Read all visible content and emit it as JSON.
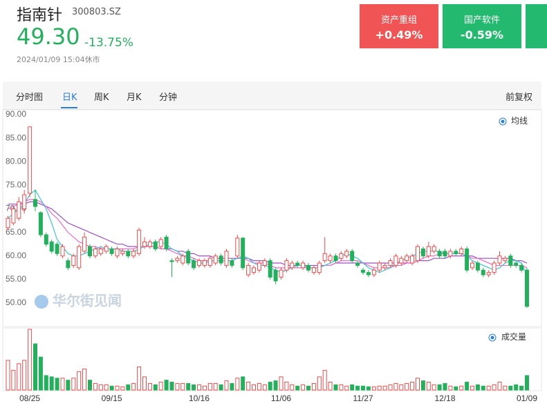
{
  "header": {
    "name": "指南针",
    "code": "300803.SZ",
    "price": "49.30",
    "change": "-13.75%",
    "time": "2024/01/09 15:04休市"
  },
  "cards": [
    {
      "label": "资产重组",
      "change": "+0.49%",
      "color": "#f05454"
    },
    {
      "label": "国产软件",
      "change": "-0.59%",
      "color": "#23b96f"
    }
  ],
  "tabs": [
    "分时图",
    "日K",
    "周K",
    "月K",
    "分钟"
  ],
  "active_tab": 1,
  "right_tab": "前复权",
  "watermark": "华尔街见闻",
  "chart_data": {
    "type": "candlestick",
    "categories": [
      null,
      null,
      null,
      null,
      "08/25",
      null,
      null,
      null,
      null,
      null,
      null,
      null,
      null,
      null,
      null,
      null,
      null,
      null,
      null,
      "09/15",
      null,
      null,
      null,
      null,
      null,
      null,
      null,
      null,
      null,
      null,
      null,
      null,
      null,
      null,
      null,
      "10/16",
      null,
      null,
      null,
      null,
      null,
      null,
      null,
      null,
      null,
      null,
      null,
      null,
      null,
      null,
      "11/06",
      null,
      null,
      null,
      null,
      null,
      null,
      null,
      null,
      null,
      null,
      null,
      null,
      null,
      null,
      "11/27",
      null,
      null,
      null,
      null,
      null,
      null,
      null,
      null,
      null,
      null,
      null,
      null,
      null,
      null,
      "12/18",
      null,
      null,
      null,
      null,
      null,
      null,
      null,
      null,
      null,
      null,
      null,
      null,
      null,
      null,
      "01/09"
    ],
    "open": [
      66,
      67,
      68,
      70,
      73.3,
      72,
      69.2,
      64.5,
      63,
      62.5,
      60,
      59,
      58,
      57.5,
      61,
      62,
      60,
      60.5,
      61,
      61.5,
      60,
      60.5,
      61,
      60,
      60.5,
      62,
      62,
      63,
      62,
      64,
      59,
      59,
      58.5,
      61,
      59,
      58,
      58,
      58,
      58.5,
      60,
      58,
      59,
      60,
      63.8,
      56,
      56.5,
      57,
      58,
      59,
      57,
      55.5,
      57,
      57.5,
      58.5,
      57.5,
      58,
      56.5,
      56.5,
      59,
      59,
      60,
      59.5,
      60,
      61,
      58.5,
      57,
      56.5,
      56,
      57,
      57.5,
      58,
      58,
      58.5,
      59,
      58.5,
      59,
      61.5,
      60,
      61,
      61,
      61,
      60,
      61,
      60.5,
      61.5,
      57.5,
      58.5,
      57,
      56,
      56.5,
      58.5,
      59,
      60,
      58.5,
      58,
      57
    ],
    "high": [
      68.5,
      70.5,
      72.5,
      74,
      87.5,
      74,
      69.5,
      65,
      63.5,
      63,
      62.5,
      59.5,
      60.5,
      62.5,
      65,
      62.5,
      62,
      62,
      62.5,
      62,
      62,
      61.5,
      61.5,
      61.5,
      66,
      64,
      63.5,
      63.5,
      64,
      64.5,
      59.5,
      60,
      60.5,
      61.5,
      59.5,
      59.5,
      59.5,
      60,
      60.5,
      60.5,
      61.5,
      59.5,
      64.5,
      64,
      58.5,
      58,
      59,
      59.5,
      59.5,
      57.5,
      57.5,
      59.5,
      59,
      59,
      59,
      58.5,
      58,
      59,
      64,
      60.5,
      60.5,
      61,
      61.5,
      61.5,
      59,
      57.5,
      57,
      57.5,
      59,
      58.5,
      59.5,
      60.5,
      60,
      60.5,
      60.5,
      62.5,
      62,
      63,
      62.5,
      61.5,
      61.5,
      61.5,
      61.5,
      62,
      62,
      59,
      59,
      57.5,
      57,
      59,
      61,
      60,
      60.5,
      59,
      58.5,
      57.5
    ],
    "low": [
      65.5,
      66.5,
      67.5,
      69,
      72.5,
      69.5,
      64,
      62,
      60.5,
      60,
      59.5,
      57,
      57.5,
      57,
      60.5,
      59.5,
      59.5,
      60,
      60.5,
      60,
      59.5,
      60,
      59.5,
      59.5,
      60,
      61.5,
      61.5,
      61,
      61.5,
      61,
      55.5,
      58.5,
      58,
      58,
      57,
      57.5,
      57.5,
      57.5,
      58,
      58,
      57.5,
      57.5,
      59.5,
      57,
      55.5,
      56,
      56.5,
      57.5,
      55,
      54,
      55,
      56.5,
      57,
      57.5,
      57,
      56.5,
      56,
      56,
      58.5,
      58.5,
      58.5,
      59,
      59.5,
      58.5,
      57.5,
      56,
      55.5,
      55.5,
      56.5,
      57,
      57.5,
      57.5,
      58,
      58.5,
      58,
      58.5,
      59.5,
      59.5,
      60.5,
      59.5,
      59.5,
      59.5,
      60,
      60,
      56.5,
      57,
      56.5,
      55.5,
      55.5,
      56,
      58,
      58.5,
      57.5,
      57.5,
      56.5,
      49
    ],
    "close": [
      68,
      70,
      71.5,
      73,
      87.4,
      70.5,
      64.5,
      62.5,
      61,
      60.5,
      62,
      57.5,
      60,
      62,
      64,
      60,
      61.5,
      61.5,
      62,
      60.5,
      61.5,
      61,
      60,
      61,
      65.5,
      63,
      63,
      61.5,
      63.5,
      61.5,
      58.8,
      59.5,
      60,
      58.5,
      57.5,
      59,
      59,
      59.5,
      60,
      58.5,
      61,
      58,
      63.8,
      57.5,
      58,
      57.5,
      58.5,
      59,
      55.5,
      54.7,
      57,
      59,
      58.5,
      58,
      58.5,
      57,
      57.5,
      58.5,
      60.5,
      60,
      59,
      60.5,
      61,
      59,
      58,
      56.5,
      56,
      57,
      58.5,
      58,
      59,
      60,
      59.5,
      60,
      60,
      62,
      60,
      62,
      62,
      60,
      60,
      61,
      60.5,
      61.5,
      57,
      58.5,
      57,
      56,
      56.5,
      58.5,
      60,
      59.5,
      58,
      58,
      57,
      49.3
    ],
    "volume": [
      45,
      30,
      40,
      45,
      92,
      70,
      50,
      22,
      20,
      18,
      18,
      15,
      18,
      28,
      32,
      15,
      10,
      8,
      8,
      6,
      6,
      5,
      8,
      10,
      35,
      20,
      10,
      8,
      12,
      15,
      12,
      10,
      10,
      10,
      8,
      8,
      6,
      10,
      10,
      8,
      14,
      10,
      18,
      20,
      12,
      8,
      10,
      8,
      12,
      14,
      20,
      12,
      8,
      6,
      8,
      6,
      10,
      20,
      30,
      12,
      8,
      8,
      6,
      8,
      6,
      6,
      5,
      5,
      6,
      6,
      8,
      10,
      8,
      10,
      12,
      18,
      14,
      12,
      8,
      8,
      10,
      6,
      5,
      6,
      12,
      6,
      8,
      6,
      6,
      8,
      12,
      6,
      6,
      8,
      6,
      22
    ],
    "ma": [
      {
        "color": "#9b4fc4",
        "values": [
          71,
          71,
          71,
          71,
          71.5,
          71.5,
          71,
          70.5,
          70,
          69,
          68,
          67,
          66.5,
          66,
          65.5,
          65,
          64.5,
          64,
          63.5,
          63,
          62.5,
          62.5,
          62,
          62,
          62,
          62,
          62,
          62,
          61.5,
          61.5,
          61.5,
          61,
          61,
          60.5,
          60.5,
          60,
          60,
          60,
          59.5,
          59.5,
          59.5,
          59.5,
          59.5,
          59.5,
          59.5,
          59,
          59,
          59,
          58.5,
          58.5,
          58.5,
          58,
          58,
          58,
          58,
          58,
          58,
          58,
          58,
          58,
          58.5,
          58.5,
          58.5,
          58.5,
          58.5,
          58.5,
          58.5,
          58.5,
          58.5,
          58.5,
          58.5,
          58.5,
          58.5,
          58.5,
          58.5,
          59,
          59,
          59,
          59.5,
          59.5,
          59.5,
          60,
          60,
          60,
          60,
          60,
          59.5,
          59.5,
          59.5,
          59.5,
          59.5,
          59.5,
          59.5,
          59,
          59,
          58.5
        ]
      },
      {
        "color": "#f06ac8",
        "values": [
          70,
          70.5,
          71,
          71.5,
          72,
          72,
          71.5,
          70.5,
          69,
          68,
          66.5,
          65,
          64,
          63,
          62.5,
          62,
          62,
          61.5,
          61.5,
          61.5,
          61.5,
          61.5,
          61.5,
          61.5,
          62,
          62,
          62,
          62,
          61.5,
          61.5,
          61,
          60.5,
          60,
          60,
          59.5,
          59,
          59,
          59,
          59,
          59,
          59,
          59,
          59.5,
          59.5,
          59,
          58.5,
          58.5,
          58.5,
          58,
          57.5,
          57.5,
          57.5,
          57.5,
          57.5,
          57.5,
          57.5,
          57.5,
          57.5,
          58,
          58,
          58.5,
          59,
          59,
          59,
          59,
          58.5,
          58,
          57.5,
          57.5,
          57.5,
          57.5,
          58,
          58,
          58.5,
          58.5,
          59,
          59.5,
          60,
          60,
          60.5,
          60.5,
          60.5,
          60.5,
          60.5,
          60,
          59.5,
          59.5,
          59,
          58.5,
          58,
          58,
          58,
          58,
          58,
          58,
          57.5
        ]
      },
      {
        "color": "#3cc3d6",
        "values": [
          68,
          69,
          70,
          71,
          73,
          74,
          72,
          70,
          67,
          63.5,
          62,
          60.5,
          60,
          60,
          60.5,
          61,
          61.5,
          62,
          61.5,
          61.5,
          61.5,
          61,
          61,
          61,
          61.5,
          62,
          62.5,
          63,
          63,
          62.5,
          61.5,
          61,
          60,
          59.5,
          59,
          58.5,
          58.5,
          59,
          59,
          59,
          59,
          59,
          59.5,
          60,
          59.5,
          58.5,
          58,
          58,
          57.5,
          57,
          56.5,
          57,
          57.5,
          58,
          58,
          57.5,
          57.5,
          57.5,
          58,
          58.5,
          59,
          60,
          60.5,
          60,
          59.5,
          58.5,
          57.5,
          57,
          56.5,
          57,
          57.5,
          58.5,
          59,
          59.5,
          60,
          60.5,
          61,
          61,
          61,
          61,
          60.5,
          60.5,
          60.5,
          60.5,
          60,
          59,
          58.5,
          58,
          57.5,
          57,
          57.5,
          58.5,
          59,
          59,
          58.5,
          56
        ]
      }
    ],
    "up_color": "#ef4a4a",
    "down_color": "#23b05d",
    "ylim": [
      45.17,
      90.88
    ],
    "yticks": [
      {
        "value": 90,
        "label": "90.00"
      },
      {
        "value": 85,
        "label": "85.00"
      },
      {
        "value": 80,
        "label": "80.00"
      },
      {
        "value": 75,
        "label": "75.00"
      },
      {
        "value": 70,
        "label": "70.00"
      },
      {
        "value": 65,
        "label": "65.00"
      },
      {
        "value": 60,
        "label": "60.00"
      },
      {
        "value": 55,
        "label": "55.00"
      },
      {
        "value": 50,
        "label": "50.00"
      }
    ],
    "legend": "均线",
    "volume_legend": "成交量"
  }
}
